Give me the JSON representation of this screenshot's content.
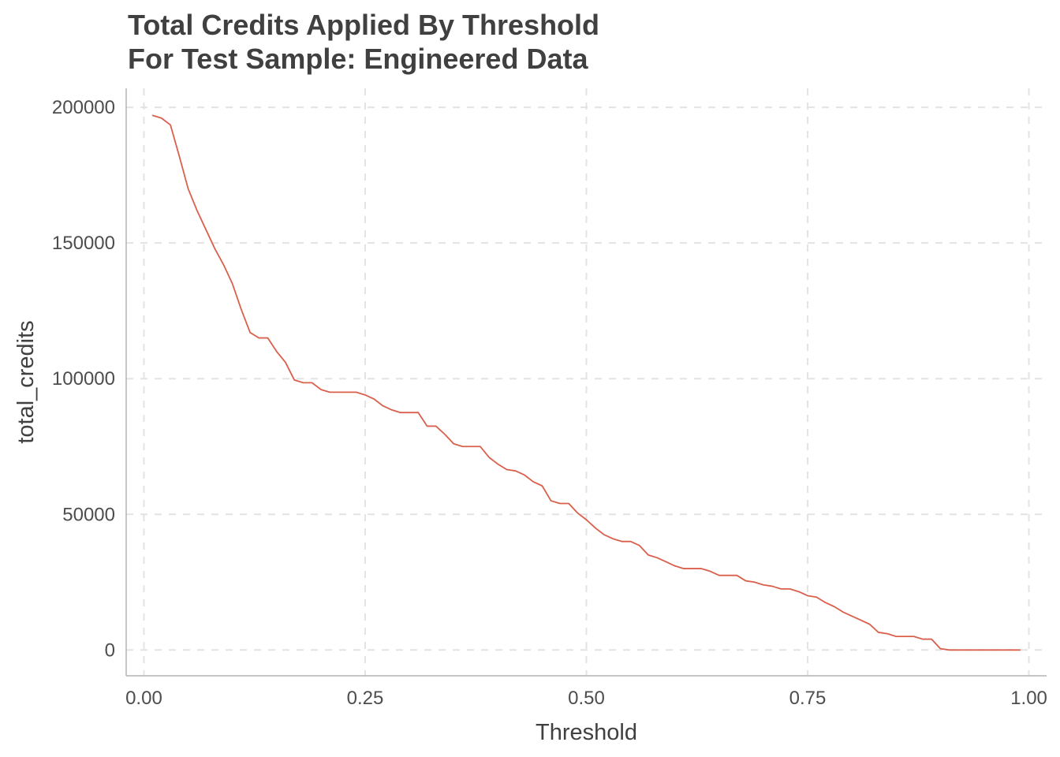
{
  "chart_data": {
    "type": "line",
    "title": "Total Credits Applied By Threshold",
    "subtitle": "For Test Sample: Engineered Data",
    "xlabel": "Threshold",
    "ylabel": "total_credits",
    "xlim": [
      -0.02,
      1.02
    ],
    "ylim": [
      -9500,
      207000
    ],
    "x_ticks": [
      0.0,
      0.25,
      0.5,
      0.75,
      1.0
    ],
    "x_tick_labels": [
      "0.00",
      "0.25",
      "0.50",
      "0.75",
      "1.00"
    ],
    "y_ticks": [
      0,
      50000,
      100000,
      150000,
      200000
    ],
    "y_tick_labels": [
      "0",
      "50000",
      "100000",
      "150000",
      "200000"
    ],
    "grid": true,
    "line_color": "#d9604c",
    "series": [
      {
        "x": [
          0.01,
          0.02,
          0.03,
          0.04,
          0.05,
          0.06,
          0.07,
          0.08,
          0.09,
          0.1,
          0.11,
          0.12,
          0.13,
          0.14,
          0.15,
          0.16,
          0.17,
          0.18,
          0.19,
          0.2,
          0.21,
          0.22,
          0.23,
          0.24,
          0.25,
          0.26,
          0.27,
          0.28,
          0.29,
          0.3,
          0.31,
          0.32,
          0.33,
          0.34,
          0.35,
          0.36,
          0.37,
          0.38,
          0.39,
          0.4,
          0.41,
          0.42,
          0.43,
          0.44,
          0.45,
          0.46,
          0.47,
          0.48,
          0.49,
          0.5,
          0.51,
          0.52,
          0.53,
          0.54,
          0.55,
          0.56,
          0.57,
          0.58,
          0.59,
          0.6,
          0.61,
          0.62,
          0.63,
          0.64,
          0.65,
          0.66,
          0.67,
          0.68,
          0.69,
          0.7,
          0.71,
          0.72,
          0.73,
          0.74,
          0.75,
          0.76,
          0.77,
          0.78,
          0.79,
          0.8,
          0.81,
          0.82,
          0.83,
          0.84,
          0.85,
          0.86,
          0.87,
          0.88,
          0.89,
          0.9,
          0.91,
          0.92,
          0.93,
          0.94,
          0.95,
          0.96,
          0.97,
          0.98,
          0.99
        ],
        "values": [
          197000,
          196000,
          193500,
          182000,
          170000,
          162000,
          155000,
          148000,
          142000,
          135000,
          125500,
          117000,
          115000,
          115000,
          110000,
          106000,
          99500,
          98500,
          98500,
          96000,
          95000,
          95000,
          95000,
          95000,
          94000,
          92500,
          90000,
          88500,
          87500,
          87500,
          87500,
          82500,
          82500,
          79500,
          76000,
          75000,
          75000,
          75000,
          71000,
          68500,
          66500,
          66000,
          64500,
          62000,
          60500,
          55000,
          54000,
          54000,
          50500,
          48000,
          45000,
          42500,
          41000,
          40000,
          40000,
          38500,
          35000,
          34000,
          32500,
          31000,
          30000,
          30000,
          30000,
          29000,
          27500,
          27500,
          27500,
          25500,
          25000,
          24000,
          23500,
          22500,
          22500,
          21500,
          20000,
          19500,
          17500,
          16000,
          14000,
          12500,
          11000,
          9500,
          6500,
          6000,
          5000,
          5000,
          5000,
          4000,
          4000,
          500,
          0,
          0,
          0,
          0,
          0,
          0,
          0,
          0,
          0
        ]
      }
    ]
  }
}
